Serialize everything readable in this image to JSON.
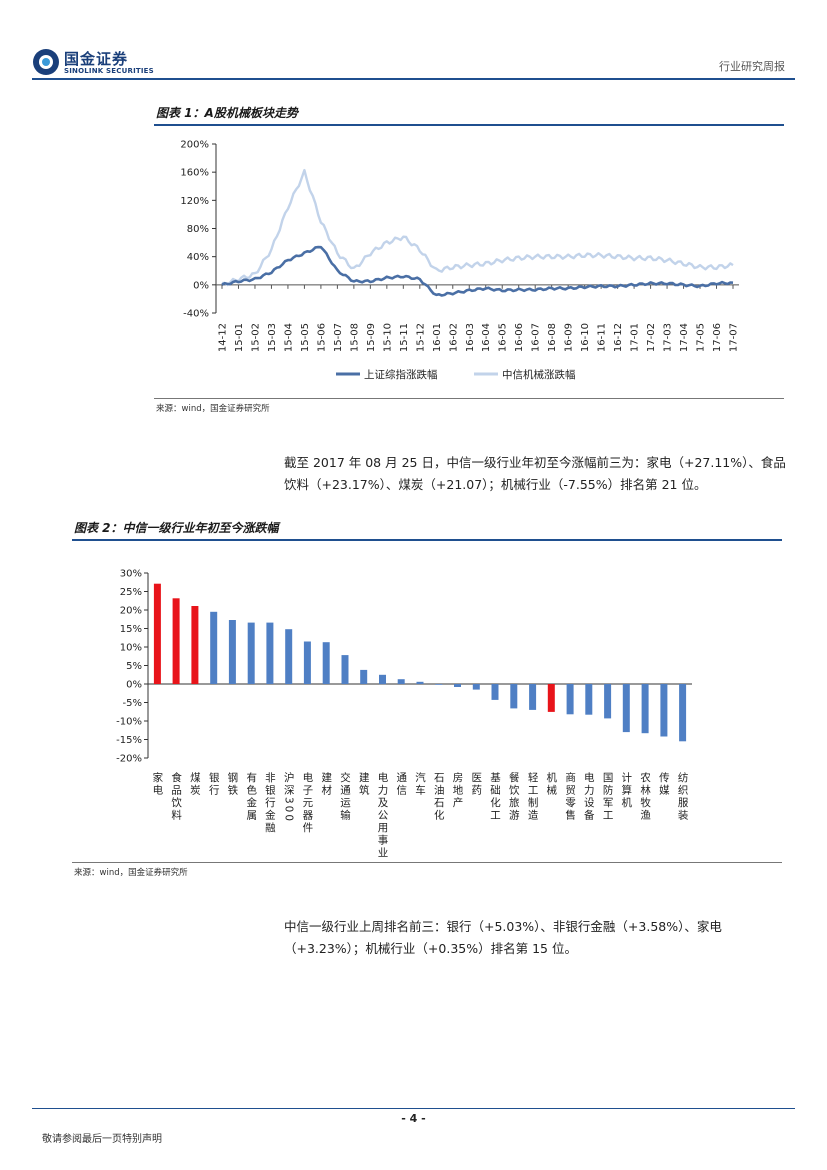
{
  "header": {
    "company_cn": "国金证券",
    "company_en": "SINOLINK SECURITIES",
    "report_type": "行业研究周报"
  },
  "figure1": {
    "title": "图表 1：A股机械板块走势",
    "source": "来源：wind，国金证券研究所"
  },
  "figure2": {
    "title": "图表 2：中信一级行业年初至今涨跌幅",
    "source": "来源：wind，国金证券研究所"
  },
  "paragraph1": "截至 2017 年 08 月 25 日，中信一级行业年初至今涨幅前三为：家电（+27.11%）、食品饮料（+23.17%）、煤炭（+21.07）；机械行业（-7.55%）排名第 21 位。",
  "paragraph2": "中信一级行业上周排名前三：银行（+5.03%）、非银行金融（+3.58%）、家电（+3.23%）；机械行业（+0.35%）排名第 15 位。",
  "footer": {
    "page": "- 4 -",
    "disclaimer": "敬请参阅最后一页特别声明"
  },
  "chart_data": [
    {
      "type": "line",
      "title": "A股机械板块走势",
      "x": [
        "14-12",
        "15-01",
        "15-02",
        "15-03",
        "15-04",
        "15-05",
        "15-06",
        "15-07",
        "15-08",
        "15-09",
        "15-10",
        "15-11",
        "15-12",
        "16-01",
        "16-02",
        "16-03",
        "16-04",
        "16-05",
        "16-06",
        "16-07",
        "16-08",
        "16-09",
        "16-10",
        "16-11",
        "16-12",
        "17-01",
        "17-02",
        "17-03",
        "17-04",
        "17-05",
        "17-06",
        "17-07"
      ],
      "ylim": [
        -40,
        200
      ],
      "yticks": [
        "-40%",
        "0%",
        "40%",
        "80%",
        "120%",
        "160%",
        "200%"
      ],
      "series": [
        {
          "name": "上证综指涨跌幅",
          "color": "#4a6fa5",
          "values": [
            0,
            5,
            8,
            18,
            35,
            45,
            55,
            20,
            5,
            5,
            10,
            12,
            8,
            -15,
            -12,
            -8,
            -5,
            -8,
            -7,
            -7,
            -5,
            -5,
            -3,
            -2,
            -2,
            0,
            2,
            2,
            0,
            -2,
            2,
            3
          ]
        },
        {
          "name": "中信机械涨跌幅",
          "color": "#c2d3ea",
          "values": [
            0,
            8,
            15,
            50,
            110,
            160,
            90,
            45,
            22,
            45,
            60,
            68,
            50,
            20,
            25,
            28,
            30,
            35,
            38,
            40,
            40,
            40,
            42,
            42,
            40,
            38,
            38,
            35,
            30,
            25,
            25,
            28
          ]
        }
      ]
    },
    {
      "type": "bar",
      "title": "中信一级行业年初至今涨跌幅",
      "ylim": [
        -20,
        30
      ],
      "yticks": [
        "-20%",
        "-15%",
        "-10%",
        "-5%",
        "0%",
        "5%",
        "10%",
        "15%",
        "20%",
        "25%",
        "30%"
      ],
      "categories": [
        "家电",
        "食品饮料",
        "煤炭",
        "银行",
        "钢铁",
        "有色金属",
        "非银行金融",
        "沪深300",
        "电子元器件",
        "建材",
        "交通运输",
        "建筑",
        "电力及公用事业",
        "通信",
        "汽车",
        "石油石化",
        "房地产",
        "医药",
        "基础化工",
        "餐饮旅游",
        "轻工制造",
        "机械",
        "商贸零售",
        "电力设备",
        "国防军工",
        "计算机",
        "农林牧渔",
        "传媒",
        "纺织服装"
      ],
      "values": [
        27.11,
        23.17,
        21.07,
        19.5,
        17.3,
        16.6,
        16.6,
        14.8,
        11.5,
        11.3,
        7.8,
        3.8,
        2.5,
        1.3,
        0.6,
        -0.2,
        -0.8,
        -1.5,
        -4.3,
        -6.6,
        -7.0,
        -7.55,
        -8.2,
        -8.3,
        -9.3,
        -13.0,
        -13.3,
        -14.2,
        -15.5
      ],
      "highlight": [
        "家电",
        "食品饮料",
        "煤炭",
        "机械"
      ],
      "colors": {
        "normal": "#4f7fc4",
        "highlight": "#e8141a"
      }
    }
  ]
}
